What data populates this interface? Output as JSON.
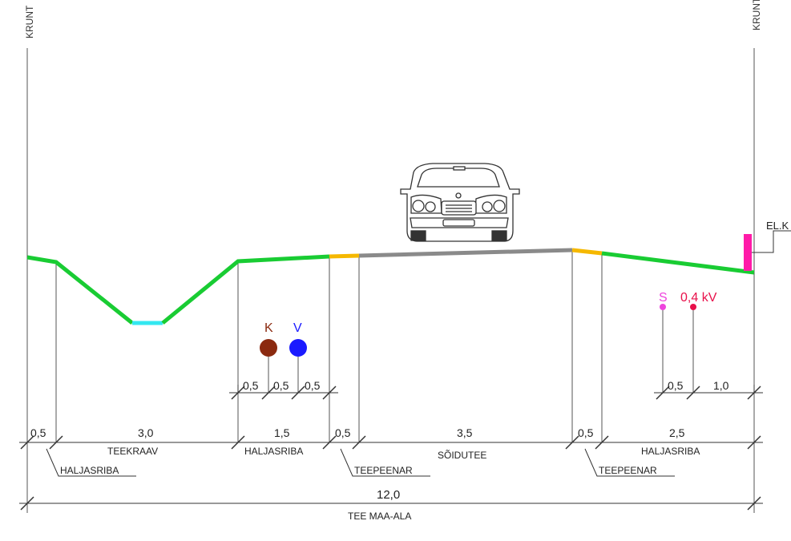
{
  "labels": {
    "krunt_left": "KRUNT",
    "krunt_right": "KRUNT",
    "el_k": "EL.K",
    "utility_k": "K",
    "utility_v": "V",
    "utility_s": "S",
    "utility_04kv": "0,4 kV"
  },
  "dimensions": {
    "row1": [
      "0,5",
      "0,5",
      "0,5",
      "0,5",
      "1,0"
    ],
    "row2": [
      "0,5",
      "3,0",
      "1,5",
      "0,5",
      "3,5",
      "0,5",
      "2,5"
    ],
    "total": "12,0"
  },
  "names": {
    "teekraav": "TEEKRAAV",
    "haljasriba_mid": "HALJASRIBA",
    "soidutee": "SÕIDUTEE",
    "haljasriba_right": "HALJASRIBA",
    "haljasriba_left": "HALJASRIBA",
    "teepeenar_left": "TEEPEENAR",
    "teepeenar_right": "TEEPEENAR",
    "tee_maa_ala": "TEE MAA-ALA"
  },
  "colors": {
    "green": "#19cc33",
    "cyan": "#33e8f0",
    "orange": "#f5b800",
    "gray": "#8a8a8a",
    "magenta": "#ff1aa8",
    "brown": "#8b2a10",
    "blue": "#1a1aff",
    "red": "#e8104a",
    "pink": "#ee44dd"
  }
}
